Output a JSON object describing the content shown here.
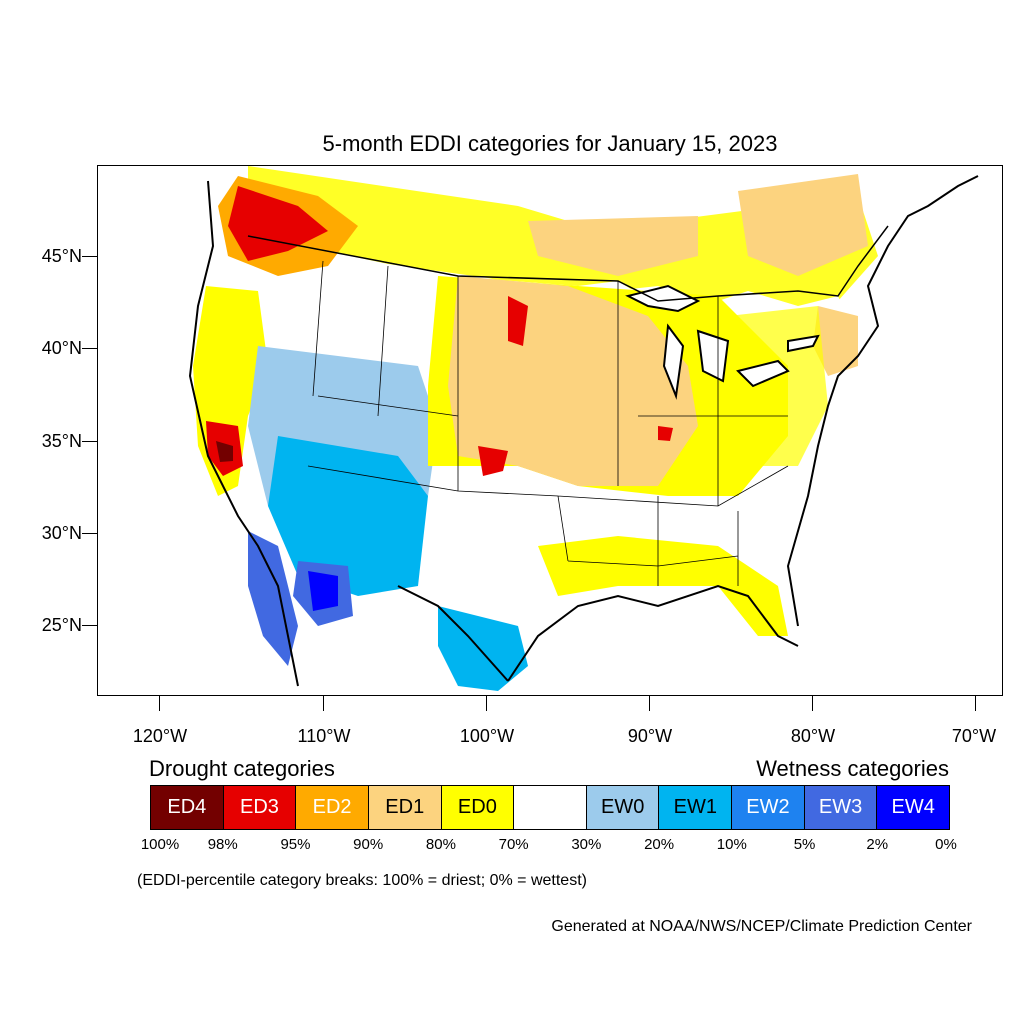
{
  "title": "5-month EDDI categories for January 15, 2023",
  "lat_labels": [
    "45°N",
    "40°N",
    "35°N",
    "30°N",
    "25°N"
  ],
  "lon_labels": [
    "120°W",
    "110°W",
    "100°W",
    "90°W",
    "80°W",
    "70°W"
  ],
  "legend": {
    "drought_heading": "Drought categories",
    "wetness_heading": "Wetness categories",
    "categories": [
      {
        "label": "ED4",
        "color": "#730000",
        "text_color": "#ffffff"
      },
      {
        "label": "ED3",
        "color": "#e60000",
        "text_color": "#ffffff"
      },
      {
        "label": "ED2",
        "color": "#ffaa00",
        "text_color": "#ffffff"
      },
      {
        "label": "ED1",
        "color": "#fcd37f",
        "text_color": "#000000"
      },
      {
        "label": "ED0",
        "color": "#ffff00",
        "text_color": "#000000"
      },
      {
        "label": "",
        "color": "#ffffff",
        "text_color": "#000000"
      },
      {
        "label": "EW0",
        "color": "#9ccbec",
        "text_color": "#000000"
      },
      {
        "label": "EW1",
        "color": "#00b4f0",
        "text_color": "#000000"
      },
      {
        "label": "EW2",
        "color": "#1e82f0",
        "text_color": "#ffffff"
      },
      {
        "label": "EW3",
        "color": "#4169e1",
        "text_color": "#ffffff"
      },
      {
        "label": "EW4",
        "color": "#0000ff",
        "text_color": "#ffffff"
      }
    ],
    "percent_breaks": [
      "100%",
      "98%",
      "95%",
      "90%",
      "80%",
      "70%",
      "30%",
      "20%",
      "10%",
      "5%",
      "2%",
      "0%"
    ]
  },
  "note": "(EDDI-percentile category breaks: 100% = driest; 0% = wettest)",
  "credit": "Generated at NOAA/NWS/NCEP/Climate Prediction Center"
}
